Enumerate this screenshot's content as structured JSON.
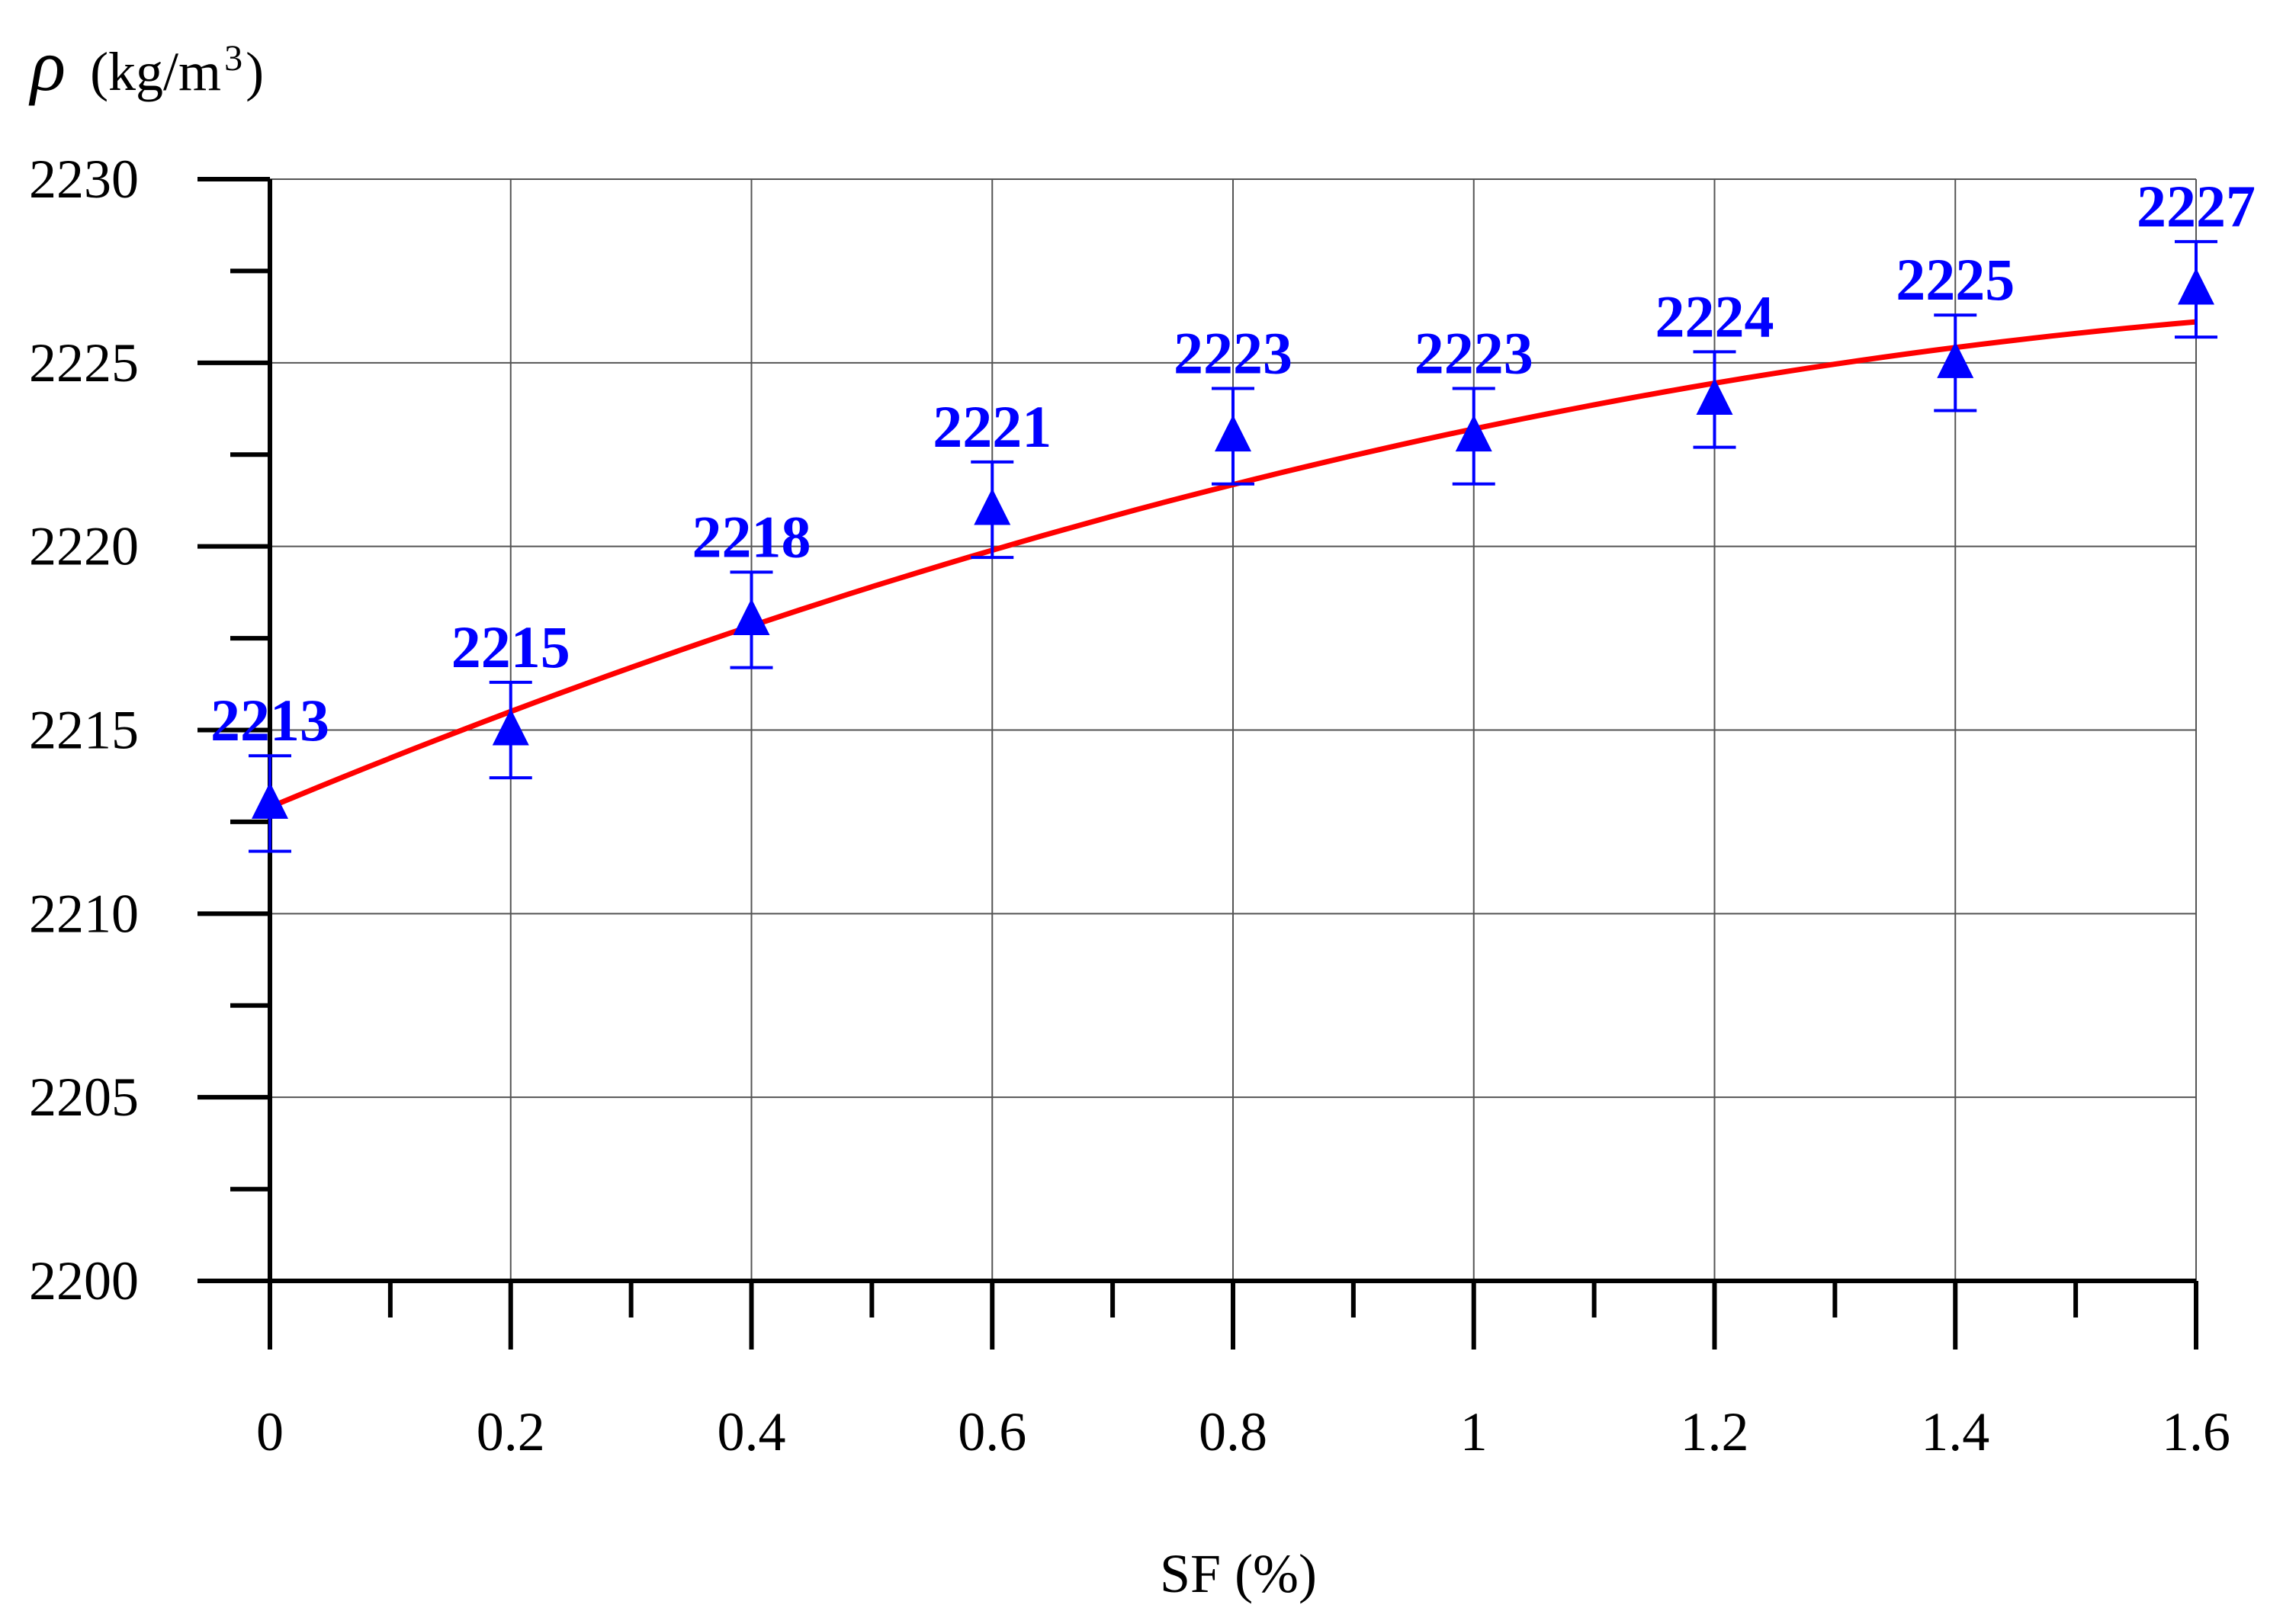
{
  "chart_data": {
    "type": "scatter",
    "ylabel_symbol": "ρ",
    "ylabel_unit_base": "(kg/m",
    "ylabel_unit_exp": "3",
    "ylabel_unit_close": ")",
    "xlabel": "SF (%)",
    "xlim": [
      0,
      1.6
    ],
    "ylim": [
      2200,
      2230
    ],
    "x_ticks": [
      0,
      0.2,
      0.4,
      0.6,
      0.8,
      1,
      1.2,
      1.4,
      1.6
    ],
    "x_tick_labels": [
      "0",
      "0.2",
      "0.4",
      "0.6",
      "0.8",
      "1",
      "1.2",
      "1.4",
      "1.6"
    ],
    "x_minor_step": 0.1,
    "y_ticks": [
      2200,
      2205,
      2210,
      2215,
      2220,
      2225,
      2230
    ],
    "y_tick_labels": [
      "2200",
      "2205",
      "2210",
      "2215",
      "2220",
      "2225",
      "2230"
    ],
    "y_minor_step": 2.5,
    "grid": true,
    "series": [
      {
        "marker": "triangle",
        "color": "#0000ff",
        "x": [
          0,
          0.2,
          0.4,
          0.6,
          0.8,
          1,
          1.2,
          1.4,
          1.6
        ],
        "y": [
          2213,
          2215,
          2218,
          2221,
          2223,
          2223,
          2224,
          2225,
          2227
        ],
        "error": [
          1.3,
          1.3,
          1.3,
          1.3,
          1.3,
          1.3,
          1.3,
          1.3,
          1.3
        ],
        "labels": [
          "2213",
          "2215",
          "2218",
          "2221",
          "2223",
          "2223",
          "2224",
          "2225",
          "2227"
        ]
      }
    ],
    "trendline": {
      "type": "polynomial-2",
      "color": "#ff0000",
      "coefficients": [
        2212.9,
        13.7,
        -3.4
      ]
    }
  }
}
